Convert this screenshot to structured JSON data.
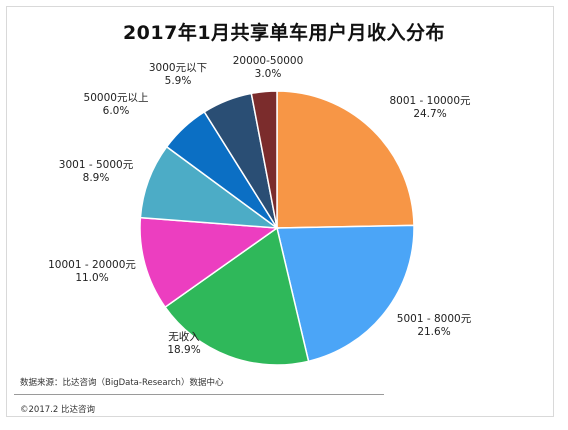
{
  "chart_data": {
    "type": "pie",
    "title": "2017年1月共享单车用户月收入分布",
    "slices": [
      {
        "label": "8001 - 10000元",
        "value": 24.7,
        "pct_label": "24.7%",
        "color": "#f79646"
      },
      {
        "label": "5001 - 8000元",
        "value": 21.6,
        "pct_label": "21.6%",
        "color": "#4ba5f7"
      },
      {
        "label": "无收入",
        "value": 18.9,
        "pct_label": "18.9%",
        "color": "#2fb85a"
      },
      {
        "label": "10001 - 20000元",
        "value": 11.0,
        "pct_label": "11.0%",
        "color": "#ec3ec0"
      },
      {
        "label": "3001 - 5000元",
        "value": 8.9,
        "pct_label": "8.9%",
        "color": "#4cacc6"
      },
      {
        "label": "50000元以上",
        "value": 6.0,
        "pct_label": "6.0%",
        "color": "#0b6fc4"
      },
      {
        "label": "3000元以下",
        "value": 5.9,
        "pct_label": "5.9%",
        "color": "#2a4e74"
      },
      {
        "label": "20000-50000",
        "value": 3.0,
        "pct_label": "3.0%",
        "color": "#7b2c2c"
      }
    ]
  },
  "footer": {
    "source": "数据来源：比达咨询（BigData-Research）数据中心",
    "copyright": "©2017.2 比达咨询"
  }
}
